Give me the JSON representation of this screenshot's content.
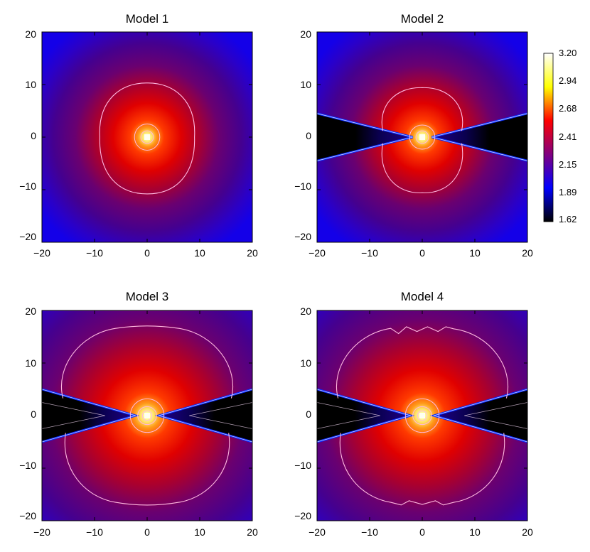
{
  "chart_data": {
    "type": "heatmap",
    "panels": [
      {
        "title": "Model 1",
        "disk_shadow": false,
        "contour_shape": "round",
        "core": 1.0,
        "xlim": [
          -20,
          20
        ],
        "ylim": [
          -20,
          20
        ],
        "xticks": [
          "−20",
          "−10",
          "0",
          "10",
          "20"
        ],
        "yticks": [
          "20",
          "10",
          "0",
          "−10",
          "−20"
        ]
      },
      {
        "title": "Model 2",
        "disk_shadow": true,
        "contour_shape": "lobes",
        "core": 1.0,
        "xlim": [
          -20,
          20
        ],
        "ylim": [
          -20,
          20
        ],
        "xticks": [
          "−20",
          "−10",
          "0",
          "10",
          "20"
        ],
        "yticks": [
          "20",
          "10",
          "0",
          "−10",
          "−20"
        ]
      },
      {
        "title": "Model 3",
        "disk_shadow": true,
        "contour_shape": "wide",
        "core": 1.35,
        "xlim": [
          -20,
          20
        ],
        "ylim": [
          -20,
          20
        ],
        "xticks": [
          "−20",
          "−10",
          "0",
          "10",
          "20"
        ],
        "yticks": [
          "20",
          "10",
          "0",
          "−10",
          "−20"
        ]
      },
      {
        "title": "Model 4",
        "disk_shadow": true,
        "contour_shape": "wide-wavy",
        "core": 1.35,
        "xlim": [
          -20,
          20
        ],
        "ylim": [
          -20,
          20
        ],
        "xticks": [
          "−20",
          "−10",
          "0",
          "10",
          "20"
        ],
        "yticks": [
          "20",
          "10",
          "0",
          "−10",
          "−20"
        ]
      }
    ],
    "colorbar": {
      "range": [
        1.62,
        3.2
      ],
      "tick_labels": [
        "3.20",
        "2.94",
        "2.68",
        "2.41",
        "2.15",
        "1.89",
        "1.62"
      ],
      "colormap": [
        "#000000",
        "#0000ff",
        "#800080",
        "#ff0000",
        "#ffff00",
        "#ffffff"
      ]
    },
    "disk_edge_color": "#0a2cff",
    "contour_color": "#ffb8e0",
    "grid": false
  }
}
